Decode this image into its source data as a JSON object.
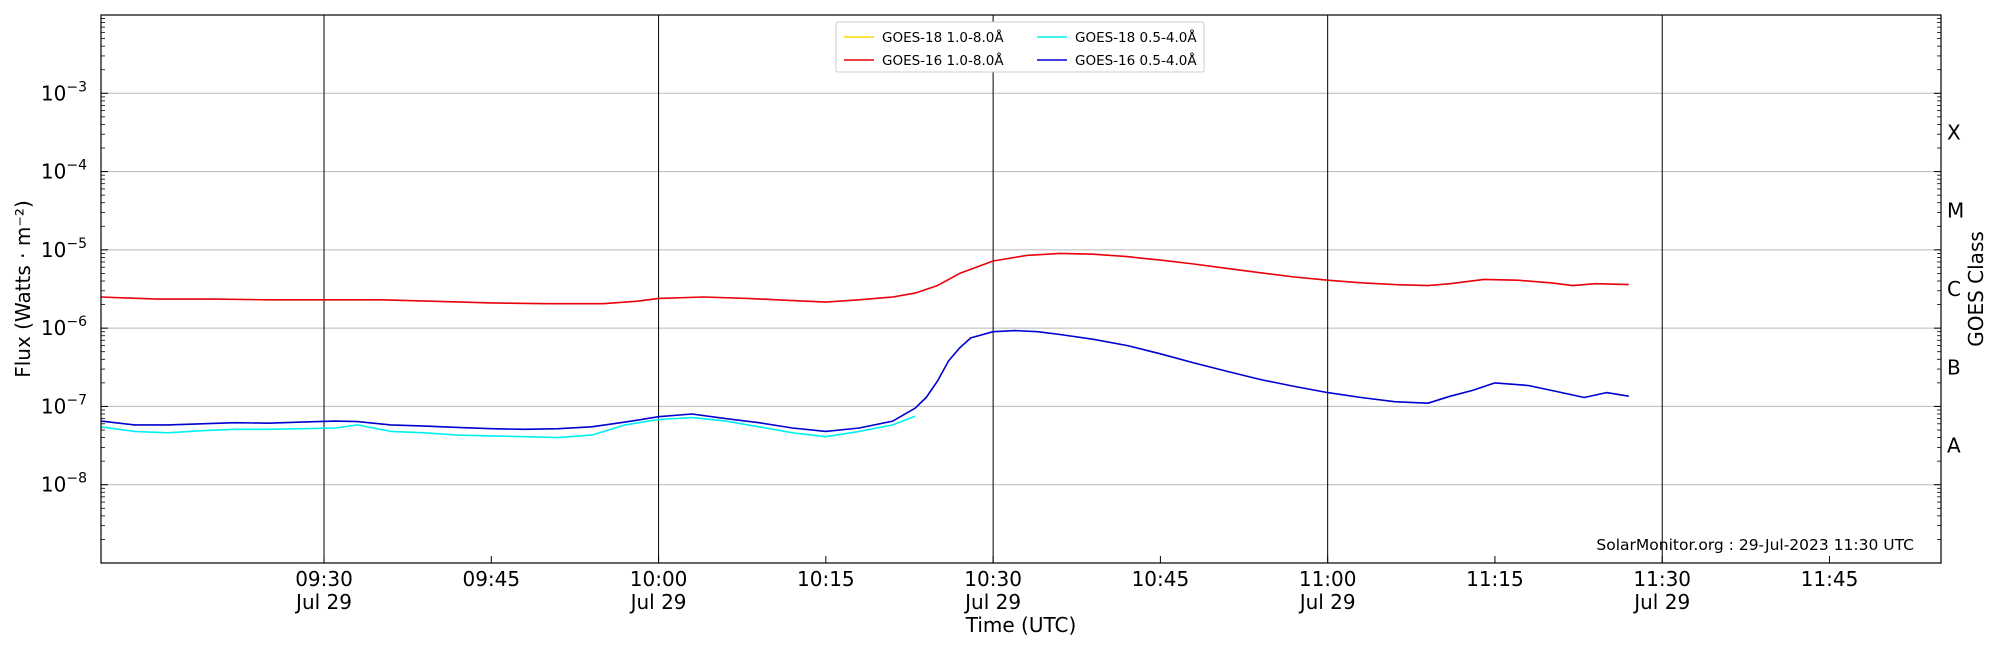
{
  "chart_data": {
    "type": "line",
    "title": "",
    "xlabel": "Time (UTC)",
    "ylabel": "Flux (Watts · m⁻²)",
    "y2label": "GOES Class",
    "yscale": "log",
    "ylim": [
      1e-09,
      0.01
    ],
    "xlim": [
      "09:10",
      "11:55"
    ],
    "x_ticks": [
      {
        "time": "09:30",
        "label": "09:30",
        "sub": "Jul 29"
      },
      {
        "time": "09:45",
        "label": "09:45",
        "sub": ""
      },
      {
        "time": "10:00",
        "label": "10:00",
        "sub": "Jul 29"
      },
      {
        "time": "10:15",
        "label": "10:15",
        "sub": ""
      },
      {
        "time": "10:30",
        "label": "10:30",
        "sub": "Jul 29"
      },
      {
        "time": "10:45",
        "label": "10:45",
        "sub": ""
      },
      {
        "time": "11:00",
        "label": "11:00",
        "sub": "Jul 29"
      },
      {
        "time": "11:15",
        "label": "11:15",
        "sub": ""
      },
      {
        "time": "11:30",
        "label": "11:30",
        "sub": "Jul 29"
      },
      {
        "time": "11:45",
        "label": "11:45",
        "sub": ""
      }
    ],
    "y_ticks": [
      {
        "value": 1e-08,
        "base": "10",
        "exp": "−8"
      },
      {
        "value": 1e-07,
        "base": "10",
        "exp": "−7"
      },
      {
        "value": 1e-06,
        "base": "10",
        "exp": "−6"
      },
      {
        "value": 1e-05,
        "base": "10",
        "exp": "−5"
      },
      {
        "value": 0.0001,
        "base": "10",
        "exp": "−4"
      },
      {
        "value": 0.001,
        "base": "10",
        "exp": "−3"
      }
    ],
    "class_labels": [
      {
        "label": "A",
        "value": 3.16e-08
      },
      {
        "label": "B",
        "value": 3.16e-07
      },
      {
        "label": "C",
        "value": 3.16e-06
      },
      {
        "label": "M",
        "value": 3.16e-05
      },
      {
        "label": "X",
        "value": 0.000316
      }
    ],
    "grid": true,
    "legend_position": "top-center",
    "annotation": "SolarMonitor.org : 29-Jul-2023 11:30 UTC",
    "series": [
      {
        "name": "GOES-18 1.0-8.0Å",
        "color": "#ffd700",
        "x": [],
        "y": []
      },
      {
        "name": "GOES-16 1.0-8.0Å",
        "color": "#e8000b",
        "x": [
          "09:10",
          "09:15",
          "09:20",
          "09:25",
          "09:30",
          "09:35",
          "09:40",
          "09:45",
          "09:50",
          "09:55",
          "09:58",
          "10:00",
          "10:04",
          "10:08",
          "10:12",
          "10:15",
          "10:18",
          "10:21",
          "10:23",
          "10:25",
          "10:27",
          "10:30",
          "10:33",
          "10:36",
          "10:39",
          "10:42",
          "10:45",
          "10:48",
          "10:51",
          "10:54",
          "10:57",
          "11:00",
          "11:03",
          "11:06",
          "11:09",
          "11:11",
          "11:14",
          "11:17",
          "11:20",
          "11:22",
          "11:24",
          "11:27"
        ],
        "y": [
          2.5e-06,
          2.35e-06,
          2.35e-06,
          2.3e-06,
          2.3e-06,
          2.3e-06,
          2.2e-06,
          2.1e-06,
          2.05e-06,
          2.05e-06,
          2.2e-06,
          2.4e-06,
          2.5e-06,
          2.4e-06,
          2.25e-06,
          2.15e-06,
          2.3e-06,
          2.5e-06,
          2.8e-06,
          3.5e-06,
          5e-06,
          7.2e-06,
          8.5e-06,
          9e-06,
          8.8e-06,
          8.2e-06,
          7.4e-06,
          6.6e-06,
          5.8e-06,
          5.1e-06,
          4.5e-06,
          4.1e-06,
          3.8e-06,
          3.6e-06,
          3.5e-06,
          3.7e-06,
          4.2e-06,
          4.1e-06,
          3.8e-06,
          3.5e-06,
          3.7e-06,
          3.6e-06
        ]
      },
      {
        "name": "GOES-18 0.5-4.0Å",
        "color": "#00f0f0",
        "x": [
          "09:10",
          "09:13",
          "09:16",
          "09:19",
          "09:22",
          "09:25",
          "09:28",
          "09:31",
          "09:33",
          "09:36",
          "09:39",
          "09:42",
          "09:45",
          "09:48",
          "09:51",
          "09:54",
          "09:57",
          "10:00",
          "10:03",
          "10:06",
          "10:09",
          "10:12",
          "10:15",
          "10:18",
          "10:21",
          "10:23"
        ],
        "y": [
          5.5e-08,
          4.8e-08,
          4.6e-08,
          4.9e-08,
          5.1e-08,
          5.1e-08,
          5.2e-08,
          5.3e-08,
          5.8e-08,
          4.8e-08,
          4.6e-08,
          4.3e-08,
          4.2e-08,
          4.1e-08,
          4e-08,
          4.3e-08,
          5.8e-08,
          6.8e-08,
          7.2e-08,
          6.5e-08,
          5.5e-08,
          4.6e-08,
          4.1e-08,
          4.8e-08,
          5.8e-08,
          7.5e-08
        ]
      },
      {
        "name": "GOES-16 0.5-4.0Å",
        "color": "#0000d0",
        "x": [
          "09:10",
          "09:13",
          "09:16",
          "09:19",
          "09:22",
          "09:25",
          "09:28",
          "09:31",
          "09:33",
          "09:36",
          "09:39",
          "09:42",
          "09:45",
          "09:48",
          "09:51",
          "09:54",
          "09:57",
          "10:00",
          "10:03",
          "10:06",
          "10:09",
          "10:12",
          "10:15",
          "10:18",
          "10:21",
          "10:23",
          "10:24",
          "10:25",
          "10:26",
          "10:27",
          "10:28",
          "10:30",
          "10:32",
          "10:34",
          "10:36",
          "10:39",
          "10:42",
          "10:45",
          "10:48",
          "10:51",
          "10:54",
          "10:57",
          "11:00",
          "11:03",
          "11:06",
          "11:09",
          "11:11",
          "11:13",
          "11:15",
          "11:18",
          "11:21",
          "11:23",
          "11:25",
          "11:27"
        ],
        "y": [
          6.5e-08,
          5.8e-08,
          5.8e-08,
          6e-08,
          6.2e-08,
          6.1e-08,
          6.3e-08,
          6.5e-08,
          6.4e-08,
          5.8e-08,
          5.6e-08,
          5.4e-08,
          5.2e-08,
          5.1e-08,
          5.2e-08,
          5.5e-08,
          6.3e-08,
          7.4e-08,
          8e-08,
          7e-08,
          6.2e-08,
          5.3e-08,
          4.8e-08,
          5.3e-08,
          6.5e-08,
          9.5e-08,
          1.3e-07,
          2.1e-07,
          3.8e-07,
          5.6e-07,
          7.5e-07,
          9e-07,
          9.3e-07,
          9e-07,
          8.3e-07,
          7.2e-07,
          6e-07,
          4.7e-07,
          3.6e-07,
          2.8e-07,
          2.2e-07,
          1.8e-07,
          1.5e-07,
          1.3e-07,
          1.15e-07,
          1.1e-07,
          1.35e-07,
          1.6e-07,
          2e-07,
          1.85e-07,
          1.5e-07,
          1.3e-07,
          1.5e-07,
          1.35e-07
        ]
      }
    ]
  }
}
